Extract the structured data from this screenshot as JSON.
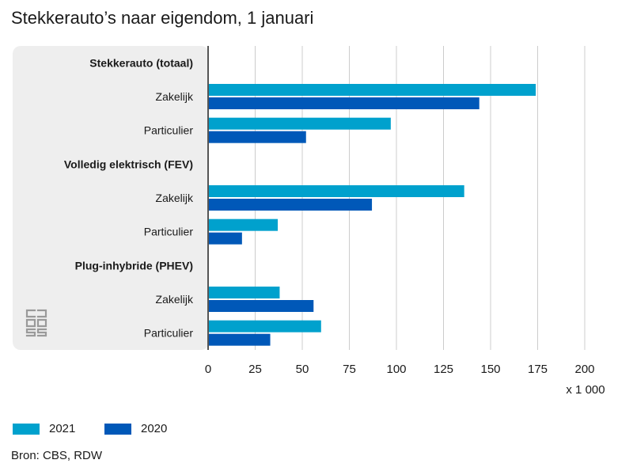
{
  "title": "Stekkerauto’s naar eigendom, 1 januari",
  "source": "Bron: CBS, RDW",
  "logo_text": "cbs",
  "colors": {
    "series_2021": "#00a1cd",
    "series_2020": "#0058b8",
    "panel": "#eeeeee",
    "grid": "#cccccc",
    "axis": "#555555"
  },
  "chart_data": {
    "type": "bar",
    "orientation": "horizontal",
    "x_unit_label": "x 1 000",
    "xlim": [
      0,
      200
    ],
    "xticks": [
      0,
      25,
      50,
      75,
      100,
      125,
      150,
      175,
      200
    ],
    "grid": true,
    "legend_position": "bottom-left",
    "categories": [
      {
        "label": "Stekkerauto (totaal)",
        "heading": true
      },
      {
        "label": "Zakelijk",
        "heading": false
      },
      {
        "label": "Particulier",
        "heading": false
      },
      {
        "label": "Volledig elektrisch (FEV)",
        "heading": true
      },
      {
        "label": "Zakelijk",
        "heading": false
      },
      {
        "label": "Particulier",
        "heading": false
      },
      {
        "label": "Plug-inhybride (PHEV)",
        "heading": true
      },
      {
        "label": "Zakelijk",
        "heading": false
      },
      {
        "label": "Particulier",
        "heading": false
      }
    ],
    "series": [
      {
        "name": "2021",
        "values": [
          null,
          174,
          97,
          null,
          136,
          37,
          null,
          38,
          60
        ]
      },
      {
        "name": "2020",
        "values": [
          null,
          144,
          52,
          null,
          87,
          18,
          null,
          56,
          33
        ]
      }
    ]
  }
}
